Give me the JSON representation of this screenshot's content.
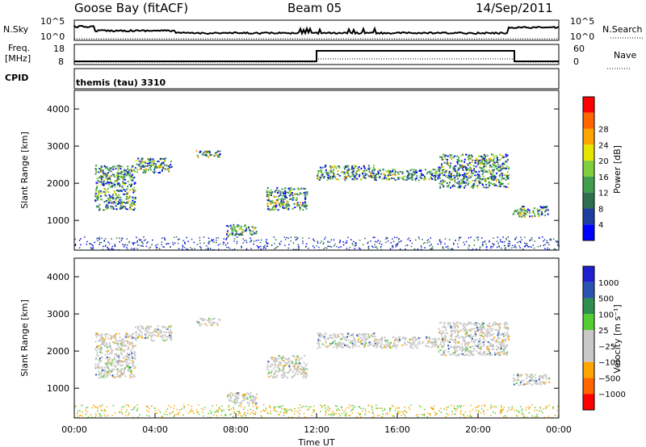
{
  "header": {
    "site": "Goose Bay (fitACF)",
    "beam": "Beam 05",
    "date": "14/Sep/2011"
  },
  "panels": {
    "nsky": {
      "label": "N.Sky",
      "ticks": [
        "10^5",
        "10^0"
      ],
      "right_label": "N.Search",
      "right_ticks": [
        "10^5",
        "10^0"
      ]
    },
    "freq": {
      "label_line1": "Freq.",
      "label_line2": "[MHz]",
      "ticks": [
        "18",
        "8"
      ],
      "right_label": "Nave",
      "right_ticks": [
        "60",
        "0"
      ]
    },
    "cpid": {
      "label": "CPID",
      "text": "themis (tau) 3310"
    }
  },
  "colors": {
    "power": [
      "#0000ff",
      "#1f3ca0",
      "#2e6f50",
      "#3f9f4f",
      "#7fcf3f",
      "#e5e500",
      "#ffa500",
      "#ff6600",
      "#ff0000"
    ],
    "velocity": [
      "#1f1fd0",
      "#2a54b0",
      "#2e8f4f",
      "#55cc33",
      "#c8c8c8",
      "#c8c8c8",
      "#ffa500",
      "#ff6600",
      "#ff0000"
    ]
  },
  "chart_data": [
    {
      "type": "heatmap",
      "name": "power",
      "ylabel": "Slant Range [km]",
      "yticks": [
        1000,
        2000,
        3000,
        4000
      ],
      "ylim": [
        200,
        4500
      ],
      "xlim": [
        0,
        24
      ],
      "colorbar_label": "Power [dB]",
      "colorbar_ticks": [
        "4",
        "8",
        "12",
        "16",
        "20",
        "24",
        "28"
      ],
      "echo_bands": [
        {
          "t": [
            1.0,
            3.0
          ],
          "r": [
            1300,
            2500
          ]
        },
        {
          "t": [
            3.0,
            4.8
          ],
          "r": [
            2300,
            2700
          ]
        },
        {
          "t": [
            6.0,
            7.2
          ],
          "r": [
            2700,
            2900
          ]
        },
        {
          "t": [
            9.5,
            11.5
          ],
          "r": [
            1300,
            1900
          ]
        },
        {
          "t": [
            12.0,
            15.0
          ],
          "r": [
            2100,
            2500
          ]
        },
        {
          "t": [
            15.0,
            18.0
          ],
          "r": [
            2100,
            2400
          ]
        },
        {
          "t": [
            18.0,
            21.5
          ],
          "r": [
            1900,
            2800
          ]
        },
        {
          "t": [
            21.7,
            23.5
          ],
          "r": [
            1100,
            1400
          ]
        },
        {
          "t": [
            7.5,
            9.0
          ],
          "r": [
            600,
            900
          ]
        }
      ]
    },
    {
      "type": "heatmap",
      "name": "velocity",
      "ylabel": "Slant Range [km]",
      "yticks": [
        1000,
        2000,
        3000,
        4000
      ],
      "ylim": [
        200,
        4500
      ],
      "xlim": [
        0,
        24
      ],
      "xlabel": "Time UT",
      "xticks": [
        "00:00",
        "04:00",
        "08:00",
        "12:00",
        "16:00",
        "20:00",
        "00:00"
      ],
      "colorbar_label": "Velocity [m s⁻¹]",
      "colorbar_ticks": [
        "1000",
        "500",
        "100",
        "25",
        "−25",
        "−100",
        "−500",
        "−1000"
      ]
    }
  ]
}
